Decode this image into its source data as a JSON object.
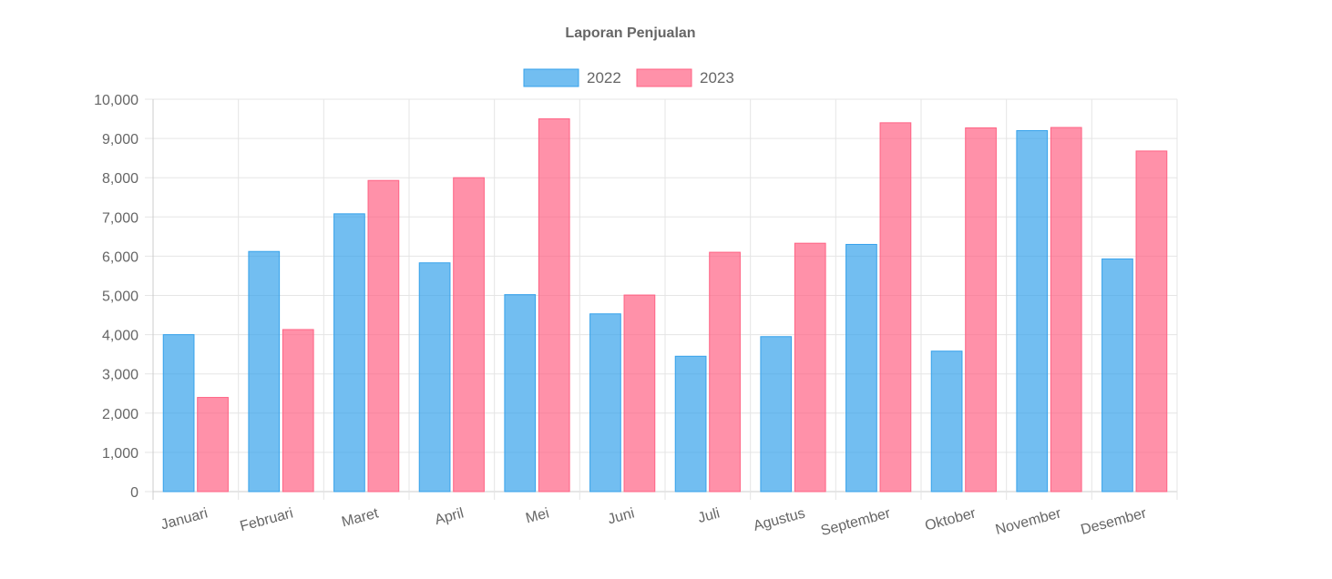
{
  "chart_data": {
    "type": "bar",
    "title": "Laporan Penjualan",
    "xlabel": "",
    "ylabel": "",
    "ylim": [
      0,
      10000
    ],
    "yticks": [
      0,
      1000,
      2000,
      3000,
      4000,
      5000,
      6000,
      7000,
      8000,
      9000,
      10000
    ],
    "ytick_labels": [
      "0",
      "1,000",
      "2,000",
      "3,000",
      "4,000",
      "5,000",
      "6,000",
      "7,000",
      "8,000",
      "9,000",
      "10,000"
    ],
    "categories": [
      "Januari",
      "Februari",
      "Maret",
      "April",
      "Mei",
      "Juni",
      "Juli",
      "Agustus",
      "September",
      "Oktober",
      "November",
      "Desember"
    ],
    "series": [
      {
        "name": "2022",
        "fill": "#36a2eb",
        "border": "#36a2eb",
        "values": [
          4000,
          6120,
          7080,
          5830,
          5020,
          4530,
          3450,
          3950,
          6300,
          3580,
          9200,
          5930
        ]
      },
      {
        "name": "2023",
        "fill": "#ff6384",
        "border": "#ff6384",
        "values": [
          2400,
          4130,
          7930,
          8000,
          9500,
          5010,
          6100,
          6330,
          9400,
          9270,
          9280,
          8680
        ]
      }
    ],
    "grid": true,
    "legend": "top"
  }
}
